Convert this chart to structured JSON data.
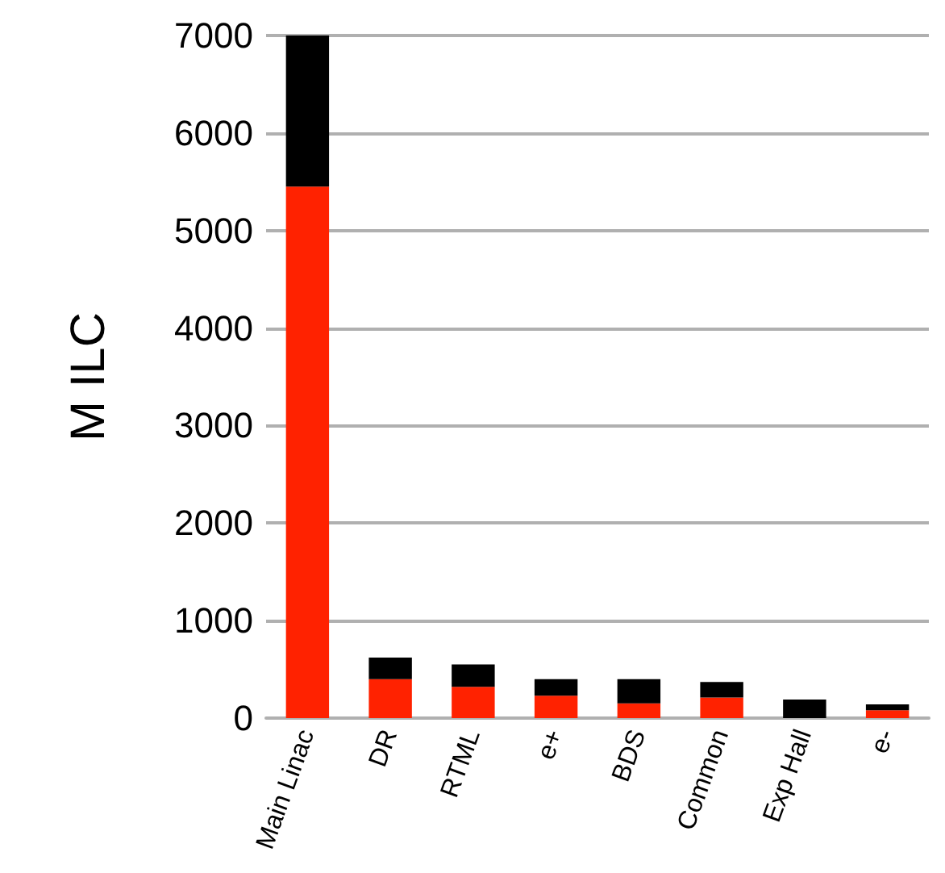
{
  "chart_data": {
    "type": "bar",
    "stacked": true,
    "ylabel": "M ILC",
    "categories": [
      "Main Linac",
      "DR",
      "RTML",
      "e+",
      "BDS",
      "Common",
      "Exp Hall",
      "e-"
    ],
    "series": [
      {
        "color": "#ff2200",
        "values": [
          5450,
          400,
          320,
          230,
          150,
          210,
          0,
          80
        ]
      },
      {
        "color": "#000000",
        "values": [
          1550,
          220,
          230,
          170,
          250,
          160,
          190,
          60
        ]
      }
    ],
    "ylim": [
      0,
      7000
    ],
    "yticks": [
      0,
      1000,
      2000,
      3000,
      4000,
      5000,
      6000,
      7000
    ],
    "grid": "y"
  }
}
